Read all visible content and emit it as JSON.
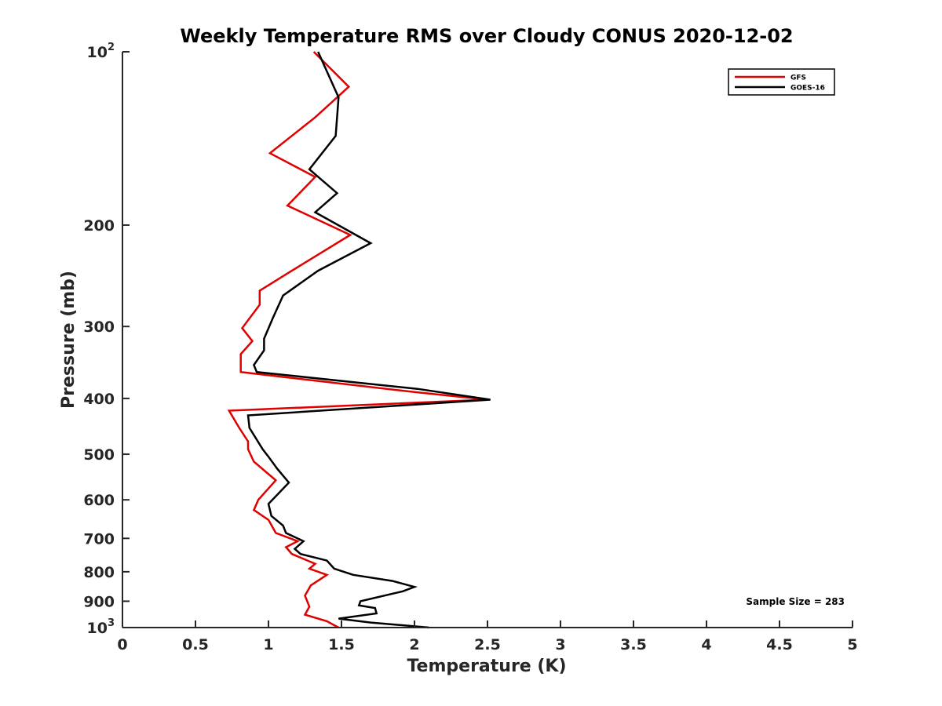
{
  "chart_data": {
    "type": "line",
    "title": "Weekly Temperature RMS over Cloudy CONUS 2020-12-02",
    "xlabel": "Temperature (K)",
    "ylabel": "Pressure (mb)",
    "xlim": [
      0,
      5
    ],
    "ylim": [
      100,
      1000
    ],
    "y_scale": "log",
    "y_reversed": true,
    "grid": false,
    "legend_position": "top-right",
    "x_ticks": [
      "0",
      "0.5",
      "1",
      "1.5",
      "2",
      "2.5",
      "3",
      "3.5",
      "4",
      "4.5",
      "5"
    ],
    "y_ticks": [
      {
        "value": 100,
        "label": "10",
        "sup": "2"
      },
      {
        "value": 200,
        "label": "200",
        "sup": ""
      },
      {
        "value": 300,
        "label": "300",
        "sup": ""
      },
      {
        "value": 400,
        "label": "400",
        "sup": ""
      },
      {
        "value": 500,
        "label": "500",
        "sup": ""
      },
      {
        "value": 600,
        "label": "600",
        "sup": ""
      },
      {
        "value": 700,
        "label": "700",
        "sup": ""
      },
      {
        "value": 800,
        "label": "800",
        "sup": ""
      },
      {
        "value": 900,
        "label": "900",
        "sup": ""
      },
      {
        "value": 1000,
        "label": "10",
        "sup": "3"
      }
    ],
    "annotation": "Sample Size = 283",
    "series": [
      {
        "name": "GFS",
        "color": "#e00000",
        "points": [
          [
            1.31,
            100
          ],
          [
            1.55,
            115
          ],
          [
            1.32,
            130
          ],
          [
            1.01,
            150
          ],
          [
            1.32,
            165
          ],
          [
            1.13,
            185
          ],
          [
            1.56,
            208
          ],
          [
            1.16,
            240
          ],
          [
            0.94,
            260
          ],
          [
            0.94,
            275
          ],
          [
            0.82,
            302
          ],
          [
            0.89,
            318
          ],
          [
            0.81,
            335
          ],
          [
            0.81,
            360
          ],
          [
            2.0,
            390
          ],
          [
            2.5,
            402
          ],
          [
            0.73,
            420
          ],
          [
            0.8,
            450
          ],
          [
            0.86,
            475
          ],
          [
            0.86,
            490
          ],
          [
            0.9,
            515
          ],
          [
            1.05,
            555
          ],
          [
            0.93,
            600
          ],
          [
            0.9,
            625
          ],
          [
            1.0,
            650
          ],
          [
            1.05,
            685
          ],
          [
            1.2,
            708
          ],
          [
            1.12,
            725
          ],
          [
            1.16,
            745
          ],
          [
            1.32,
            775
          ],
          [
            1.28,
            790
          ],
          [
            1.4,
            810
          ],
          [
            1.29,
            845
          ],
          [
            1.25,
            880
          ],
          [
            1.28,
            920
          ],
          [
            1.25,
            950
          ],
          [
            1.4,
            975
          ],
          [
            1.48,
            1000
          ]
        ]
      },
      {
        "name": "GOES-16",
        "color": "#000000",
        "points": [
          [
            1.34,
            100
          ],
          [
            1.48,
            120
          ],
          [
            1.46,
            140
          ],
          [
            1.28,
            160
          ],
          [
            1.47,
            176
          ],
          [
            1.32,
            190
          ],
          [
            1.7,
            215
          ],
          [
            1.34,
            240
          ],
          [
            1.1,
            265
          ],
          [
            1.03,
            290
          ],
          [
            0.97,
            315
          ],
          [
            0.97,
            330
          ],
          [
            0.9,
            350
          ],
          [
            0.92,
            360
          ],
          [
            2.02,
            385
          ],
          [
            2.52,
            402
          ],
          [
            0.86,
            428
          ],
          [
            0.87,
            450
          ],
          [
            0.96,
            490
          ],
          [
            1.0,
            505
          ],
          [
            1.06,
            530
          ],
          [
            1.14,
            560
          ],
          [
            1.0,
            610
          ],
          [
            1.02,
            640
          ],
          [
            1.1,
            665
          ],
          [
            1.12,
            685
          ],
          [
            1.24,
            708
          ],
          [
            1.18,
            730
          ],
          [
            1.22,
            745
          ],
          [
            1.4,
            765
          ],
          [
            1.45,
            790
          ],
          [
            1.58,
            810
          ],
          [
            1.85,
            830
          ],
          [
            2.0,
            850
          ],
          [
            1.92,
            865
          ],
          [
            1.63,
            900
          ],
          [
            1.62,
            915
          ],
          [
            1.73,
            925
          ],
          [
            1.74,
            945
          ],
          [
            1.48,
            965
          ],
          [
            1.7,
            980
          ],
          [
            2.1,
            1000
          ]
        ]
      }
    ]
  }
}
